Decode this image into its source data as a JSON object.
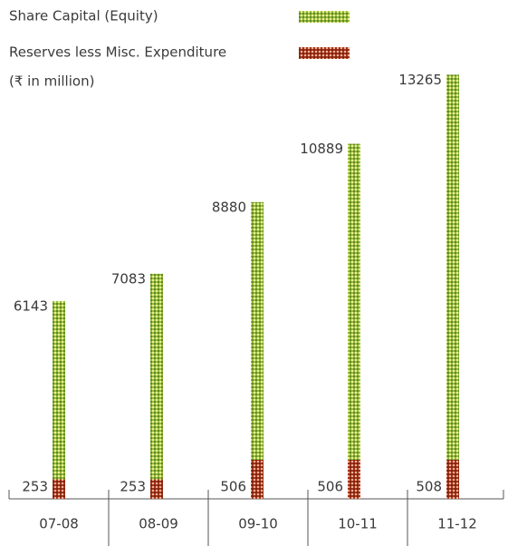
{
  "chart_data": {
    "type": "stacked_bar",
    "legend_title": null,
    "unit": "(₹ in million)",
    "categories": [
      "07-08",
      "08-09",
      "09-10",
      "10-11",
      "11-12"
    ],
    "series": [
      {
        "name": "Reserves less Misc. Expenditure",
        "color": "#a8361c",
        "values": [
          253,
          253,
          506,
          506,
          508
        ]
      },
      {
        "name": "Share Capital (Equity)",
        "color": "#9bbb3a",
        "values": [
          6143,
          7083,
          8880,
          10889,
          13265
        ]
      }
    ]
  }
}
